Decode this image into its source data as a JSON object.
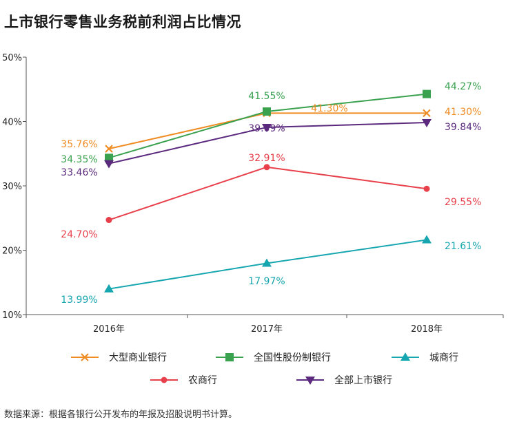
{
  "title": "上市银行零售业务税前利润占比情况",
  "source": "数据来源：根据各银行公开发布的年报及招股说明书计算。",
  "chart_data": {
    "type": "line",
    "title": "上市银行零售业务税前利润占比情况",
    "categories": [
      "2016年",
      "2017年",
      "2018年"
    ],
    "ylim": [
      10,
      50
    ],
    "yticks": [
      10,
      20,
      30,
      40,
      50
    ],
    "ytick_labels": [
      "10%",
      "20%",
      "30%",
      "40%",
      "50%"
    ],
    "grid": false,
    "legend_position": "bottom",
    "series": [
      {
        "name": "大型商业银行",
        "color": "#f08c24",
        "marker": "x",
        "values": [
          35.76,
          41.3,
          41.3
        ],
        "labels": [
          "35.76%",
          "41.30%",
          "41.30%"
        ]
      },
      {
        "name": "全国性股份制银行",
        "color": "#3aa14f",
        "marker": "square",
        "values": [
          34.35,
          41.55,
          44.27
        ],
        "labels": [
          "34.35%",
          "41.55%",
          "44.27%"
        ]
      },
      {
        "name": "城商行",
        "color": "#16a6b0",
        "marker": "triangle",
        "values": [
          13.99,
          17.97,
          21.61
        ],
        "labels": [
          "13.99%",
          "17.97%",
          "21.61%"
        ]
      },
      {
        "name": "农商行",
        "color": "#e8404b",
        "marker": "circle",
        "values": [
          24.7,
          32.91,
          29.55
        ],
        "labels": [
          "24.70%",
          "32.91%",
          "29.55%"
        ]
      },
      {
        "name": "全部上市银行",
        "color": "#5b2a7e",
        "marker": "triangle-down",
        "values": [
          33.46,
          39.09,
          39.84
        ],
        "labels": [
          "33.46%",
          "39.09%",
          "39.84%"
        ]
      }
    ]
  }
}
